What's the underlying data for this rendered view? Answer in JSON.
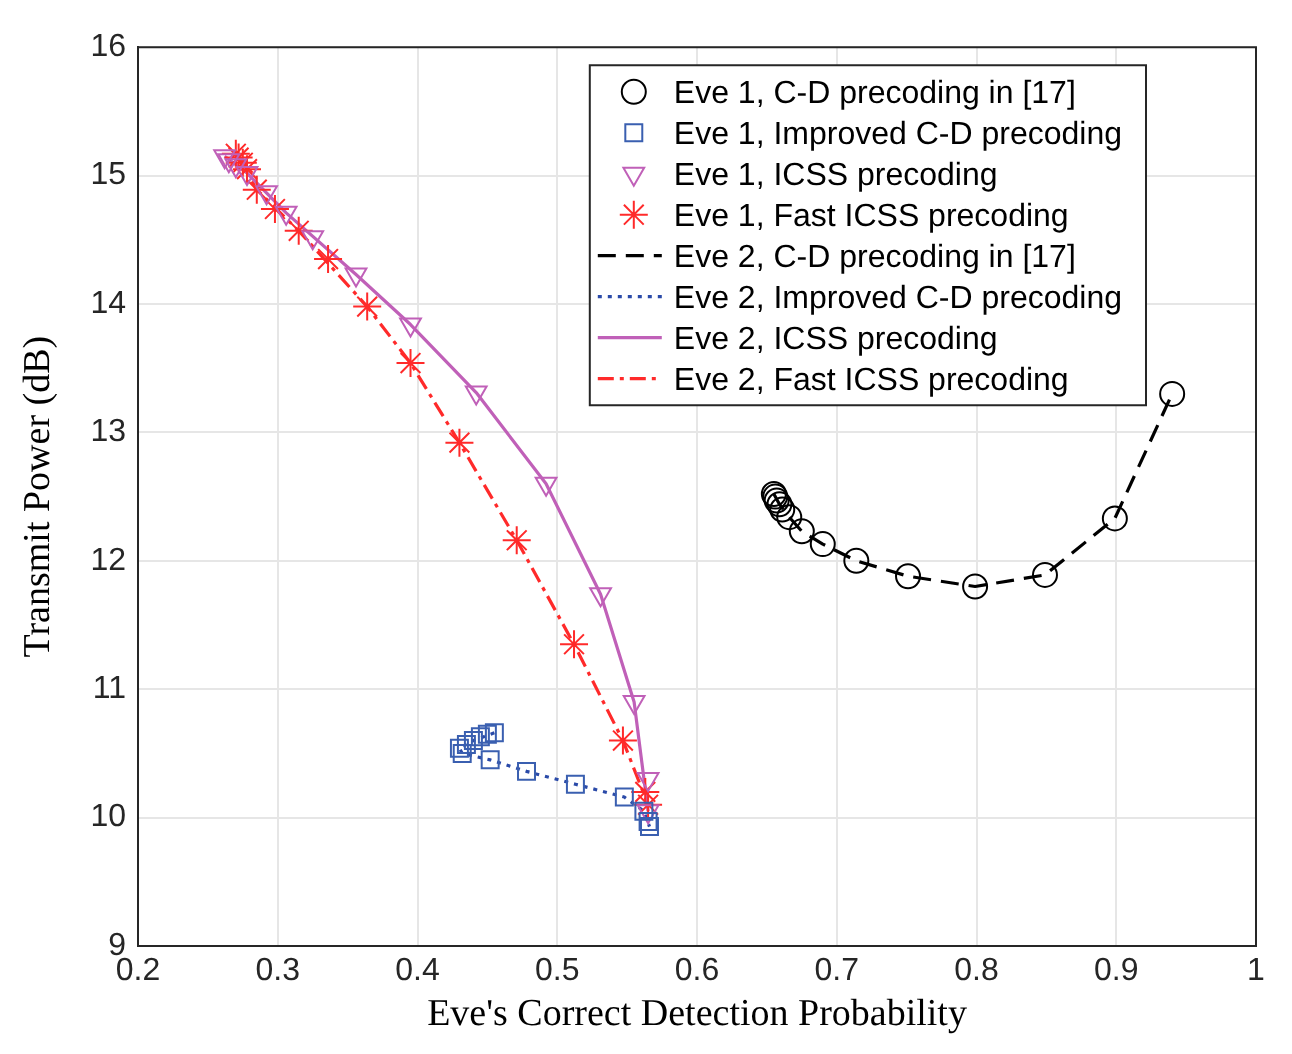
{
  "chart_data": {
    "type": "line",
    "xlabel": "Eve's Correct Detection Probability",
    "ylabel": "Transmit Power (dB)",
    "xlim": [
      0.2,
      1
    ],
    "xticks": [
      0.2,
      0.3,
      0.4,
      0.5,
      0.6,
      0.7,
      0.8,
      0.9,
      1
    ],
    "ylim": [
      9,
      16
    ],
    "yticks": [
      9,
      10,
      11,
      12,
      13,
      14,
      15,
      16
    ],
    "grid": true,
    "legend": "top right",
    "series": [
      {
        "name": "Eve 1, C-D precoding in [17]",
        "type": "scatter",
        "marker": "circle",
        "color": "#000000",
        "x": [
          0.655,
          0.656,
          0.657,
          0.659,
          0.661,
          0.666,
          0.675,
          0.69,
          0.714,
          0.751,
          0.799,
          0.849,
          0.899,
          0.94
        ],
        "values": [
          12.52,
          12.5,
          12.47,
          12.44,
          12.4,
          12.34,
          12.23,
          12.13,
          12.0,
          11.88,
          11.8,
          11.89,
          12.33,
          13.3
        ]
      },
      {
        "name": "Eve 1, Improved C-D precoding",
        "type": "scatter",
        "marker": "square",
        "color": "#3a5fb0",
        "x": [
          0.455,
          0.45,
          0.445,
          0.44,
          0.435,
          0.43,
          0.432,
          0.452,
          0.478,
          0.513,
          0.548,
          0.562,
          0.565,
          0.566
        ],
        "values": [
          10.66,
          10.65,
          10.63,
          10.6,
          10.57,
          10.54,
          10.5,
          10.45,
          10.36,
          10.26,
          10.16,
          10.05,
          9.97,
          9.93
        ]
      },
      {
        "name": "Eve 1, ICSS precoding",
        "type": "scatter",
        "marker": "triangle",
        "color": "#c060b8",
        "x": [
          0.262,
          0.265,
          0.27,
          0.278,
          0.292,
          0.306,
          0.325,
          0.356,
          0.395,
          0.442,
          0.492,
          0.531,
          0.555,
          0.565,
          0.565
        ],
        "values": [
          15.15,
          15.12,
          15.08,
          15.02,
          14.87,
          14.71,
          14.52,
          14.23,
          13.84,
          13.31,
          12.6,
          11.74,
          10.9,
          10.3,
          10.05
        ]
      },
      {
        "name": "Eve 1, Fast ICSS precoding",
        "type": "scatter",
        "marker": "cross",
        "color": "#ff2a2a",
        "x": [
          0.27,
          0.272,
          0.275,
          0.278,
          0.285,
          0.298,
          0.315,
          0.336,
          0.364,
          0.395,
          0.43,
          0.471,
          0.512,
          0.547,
          0.563,
          0.565
        ],
        "values": [
          15.17,
          15.14,
          15.1,
          15.05,
          14.89,
          14.74,
          14.57,
          14.35,
          13.98,
          13.54,
          12.92,
          12.16,
          11.35,
          10.6,
          10.2,
          10.1
        ]
      },
      {
        "name": "Eve 2, C-D precoding in [17]",
        "type": "line",
        "line_style": "dashed",
        "color": "#000000",
        "x": [
          0.655,
          0.659,
          0.666,
          0.675,
          0.69,
          0.714,
          0.751,
          0.799,
          0.849,
          0.899,
          0.94
        ],
        "values": [
          12.52,
          12.44,
          12.34,
          12.23,
          12.13,
          12.0,
          11.88,
          11.8,
          11.89,
          12.33,
          13.3
        ]
      },
      {
        "name": "Eve 2, Improved C-D precoding",
        "type": "line",
        "line_style": "dotted",
        "color": "#2a4aa8",
        "x": [
          0.455,
          0.44,
          0.43,
          0.432,
          0.452,
          0.478,
          0.513,
          0.548,
          0.562,
          0.566
        ],
        "values": [
          10.66,
          10.6,
          10.54,
          10.5,
          10.45,
          10.36,
          10.26,
          10.16,
          10.05,
          9.93
        ]
      },
      {
        "name": "Eve 2, ICSS precoding",
        "type": "line",
        "line_style": "solid",
        "color": "#c060b8",
        "x": [
          0.262,
          0.278,
          0.306,
          0.356,
          0.395,
          0.442,
          0.492,
          0.531,
          0.555,
          0.565
        ],
        "values": [
          15.15,
          15.02,
          14.71,
          14.23,
          13.84,
          13.31,
          12.6,
          11.74,
          10.9,
          10.05
        ]
      },
      {
        "name": "Eve 2, Fast ICSS precoding",
        "type": "line",
        "line_style": "dashdot",
        "color": "#ff2a2a",
        "x": [
          0.27,
          0.285,
          0.315,
          0.364,
          0.395,
          0.43,
          0.471,
          0.512,
          0.547,
          0.565
        ],
        "values": [
          15.17,
          14.89,
          14.57,
          13.98,
          13.54,
          12.92,
          12.16,
          11.35,
          10.6,
          10.1
        ]
      }
    ]
  }
}
